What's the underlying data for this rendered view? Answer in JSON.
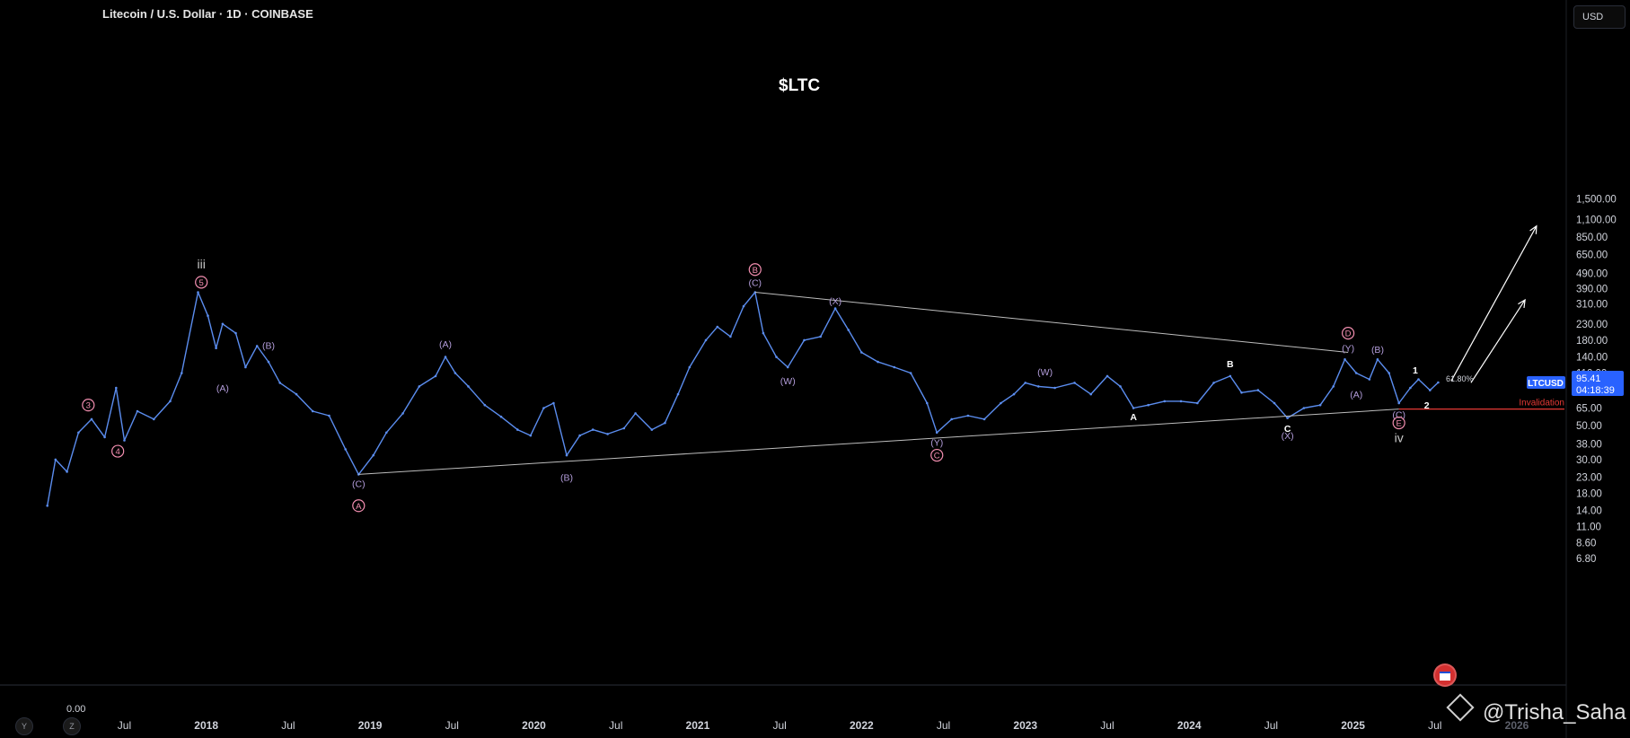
{
  "header": {
    "symbol_title": "Litecoin / U.S. Dollar · 1D · COINBASE",
    "currency_button": "USD"
  },
  "chart_title": "$LTC",
  "watermark": "@Trisha_Saha",
  "left_zero_label": "0.00",
  "bottom_buttons": [
    "Y",
    "Z"
  ],
  "colors": {
    "background": "#000000",
    "price_line": "#5b8def",
    "pink_label": "#f48fb1",
    "purple_label": "#b39ddb",
    "trendline": "#bdbdbd",
    "invalidation": "#e53935",
    "price_badge": "#2962ff"
  },
  "chart_data": {
    "type": "line",
    "title": "$LTC",
    "y_scale": "log",
    "y_ticks": [
      1500,
      1100,
      850,
      650,
      490,
      390,
      310,
      230,
      180,
      140,
      110,
      65,
      50,
      38,
      30,
      23,
      18,
      14,
      11,
      8.6,
      6.8
    ],
    "y_tick_labels": [
      "1,500.00",
      "1,100.00",
      "850.00",
      "650.00",
      "490.00",
      "390.00",
      "310.00",
      "230.00",
      "180.00",
      "140.00",
      "110.00",
      "65.00",
      "50.00",
      "38.00",
      "30.00",
      "23.00",
      "18.00",
      "14.00",
      "11.00",
      "8.60",
      "6.80"
    ],
    "x_ticks": [
      {
        "label": "Jul",
        "t": 2017.5
      },
      {
        "label": "2018",
        "t": 2018.0
      },
      {
        "label": "Jul",
        "t": 2018.5
      },
      {
        "label": "2019",
        "t": 2019.0
      },
      {
        "label": "Jul",
        "t": 2019.5
      },
      {
        "label": "2020",
        "t": 2020.0
      },
      {
        "label": "Jul",
        "t": 2020.5
      },
      {
        "label": "2021",
        "t": 2021.0
      },
      {
        "label": "Jul",
        "t": 2021.5
      },
      {
        "label": "2022",
        "t": 2022.0
      },
      {
        "label": "Jul",
        "t": 2022.5
      },
      {
        "label": "2023",
        "t": 2023.0
      },
      {
        "label": "Jul",
        "t": 2023.5
      },
      {
        "label": "2024",
        "t": 2024.0
      },
      {
        "label": "Jul",
        "t": 2024.5
      },
      {
        "label": "2025",
        "t": 2025.0
      },
      {
        "label": "Jul",
        "t": 2025.5
      },
      {
        "label": "2026",
        "t": 2026.0
      }
    ],
    "x_range": [
      2016.9,
      2026.0
    ],
    "series": [
      {
        "values": [
          {
            "t": 2017.03,
            "p": 15
          },
          {
            "t": 2017.08,
            "p": 30
          },
          {
            "t": 2017.15,
            "p": 25
          },
          {
            "t": 2017.22,
            "p": 45
          },
          {
            "t": 2017.3,
            "p": 55
          },
          {
            "t": 2017.38,
            "p": 42
          },
          {
            "t": 2017.45,
            "p": 88
          },
          {
            "t": 2017.5,
            "p": 40
          },
          {
            "t": 2017.58,
            "p": 62
          },
          {
            "t": 2017.68,
            "p": 55
          },
          {
            "t": 2017.78,
            "p": 72
          },
          {
            "t": 2017.85,
            "p": 110
          },
          {
            "t": 2017.95,
            "p": 370
          },
          {
            "t": 2018.01,
            "p": 260
          },
          {
            "t": 2018.06,
            "p": 160
          },
          {
            "t": 2018.1,
            "p": 230
          },
          {
            "t": 2018.18,
            "p": 200
          },
          {
            "t": 2018.24,
            "p": 120
          },
          {
            "t": 2018.31,
            "p": 165
          },
          {
            "t": 2018.38,
            "p": 130
          },
          {
            "t": 2018.45,
            "p": 95
          },
          {
            "t": 2018.55,
            "p": 80
          },
          {
            "t": 2018.65,
            "p": 62
          },
          {
            "t": 2018.75,
            "p": 58
          },
          {
            "t": 2018.85,
            "p": 35
          },
          {
            "t": 2018.93,
            "p": 24
          },
          {
            "t": 2019.02,
            "p": 32
          },
          {
            "t": 2019.1,
            "p": 45
          },
          {
            "t": 2019.2,
            "p": 60
          },
          {
            "t": 2019.3,
            "p": 90
          },
          {
            "t": 2019.4,
            "p": 105
          },
          {
            "t": 2019.46,
            "p": 140
          },
          {
            "t": 2019.52,
            "p": 110
          },
          {
            "t": 2019.6,
            "p": 90
          },
          {
            "t": 2019.7,
            "p": 68
          },
          {
            "t": 2019.8,
            "p": 57
          },
          {
            "t": 2019.9,
            "p": 47
          },
          {
            "t": 2019.98,
            "p": 43
          },
          {
            "t": 2020.06,
            "p": 65
          },
          {
            "t": 2020.12,
            "p": 70
          },
          {
            "t": 2020.2,
            "p": 32
          },
          {
            "t": 2020.28,
            "p": 43
          },
          {
            "t": 2020.36,
            "p": 47
          },
          {
            "t": 2020.45,
            "p": 44
          },
          {
            "t": 2020.55,
            "p": 48
          },
          {
            "t": 2020.62,
            "p": 60
          },
          {
            "t": 2020.72,
            "p": 47
          },
          {
            "t": 2020.8,
            "p": 52
          },
          {
            "t": 2020.88,
            "p": 80
          },
          {
            "t": 2020.95,
            "p": 120
          },
          {
            "t": 2021.05,
            "p": 180
          },
          {
            "t": 2021.12,
            "p": 220
          },
          {
            "t": 2021.2,
            "p": 190
          },
          {
            "t": 2021.28,
            "p": 300
          },
          {
            "t": 2021.35,
            "p": 370
          },
          {
            "t": 2021.4,
            "p": 200
          },
          {
            "t": 2021.48,
            "p": 140
          },
          {
            "t": 2021.55,
            "p": 120
          },
          {
            "t": 2021.65,
            "p": 180
          },
          {
            "t": 2021.75,
            "p": 190
          },
          {
            "t": 2021.84,
            "p": 290
          },
          {
            "t": 2021.92,
            "p": 210
          },
          {
            "t": 2022.0,
            "p": 150
          },
          {
            "t": 2022.1,
            "p": 130
          },
          {
            "t": 2022.2,
            "p": 120
          },
          {
            "t": 2022.3,
            "p": 110
          },
          {
            "t": 2022.4,
            "p": 70
          },
          {
            "t": 2022.46,
            "p": 45
          },
          {
            "t": 2022.55,
            "p": 55
          },
          {
            "t": 2022.65,
            "p": 58
          },
          {
            "t": 2022.75,
            "p": 55
          },
          {
            "t": 2022.85,
            "p": 70
          },
          {
            "t": 2022.93,
            "p": 80
          },
          {
            "t": 2023.0,
            "p": 95
          },
          {
            "t": 2023.08,
            "p": 90
          },
          {
            "t": 2023.18,
            "p": 88
          },
          {
            "t": 2023.3,
            "p": 95
          },
          {
            "t": 2023.4,
            "p": 80
          },
          {
            "t": 2023.5,
            "p": 105
          },
          {
            "t": 2023.58,
            "p": 90
          },
          {
            "t": 2023.66,
            "p": 65
          },
          {
            "t": 2023.75,
            "p": 68
          },
          {
            "t": 2023.85,
            "p": 72
          },
          {
            "t": 2023.95,
            "p": 72
          },
          {
            "t": 2024.05,
            "p": 70
          },
          {
            "t": 2024.15,
            "p": 95
          },
          {
            "t": 2024.25,
            "p": 105
          },
          {
            "t": 2024.32,
            "p": 82
          },
          {
            "t": 2024.42,
            "p": 85
          },
          {
            "t": 2024.52,
            "p": 70
          },
          {
            "t": 2024.6,
            "p": 56
          },
          {
            "t": 2024.7,
            "p": 65
          },
          {
            "t": 2024.8,
            "p": 68
          },
          {
            "t": 2024.88,
            "p": 90
          },
          {
            "t": 2024.95,
            "p": 135
          },
          {
            "t": 2025.02,
            "p": 110
          },
          {
            "t": 2025.1,
            "p": 100
          },
          {
            "t": 2025.15,
            "p": 135
          },
          {
            "t": 2025.22,
            "p": 110
          },
          {
            "t": 2025.28,
            "p": 70
          },
          {
            "t": 2025.35,
            "p": 88
          },
          {
            "t": 2025.4,
            "p": 100
          },
          {
            "t": 2025.47,
            "p": 85
          },
          {
            "t": 2025.52,
            "p": 95.41
          }
        ]
      }
    ],
    "current_price": {
      "symbol": "LTCUSD",
      "price": "95.41",
      "countdown": "04:18:39"
    },
    "fib_label": "61.80%",
    "invalidation": {
      "label": "Invalidation",
      "price": 64
    },
    "trendlines": [
      {
        "from": {
          "t": 2018.93,
          "p": 24
        },
        "to": {
          "t": 2025.28,
          "p": 64
        }
      },
      {
        "from": {
          "t": 2021.35,
          "p": 370
        },
        "to": {
          "t": 2024.97,
          "p": 150
        }
      }
    ],
    "arrows": [
      {
        "from": {
          "t": 2025.6,
          "p": 98
        },
        "to": {
          "t": 2026.12,
          "p": 1000
        }
      },
      {
        "from": {
          "t": 2025.72,
          "p": 95
        },
        "to": {
          "t": 2026.05,
          "p": 330
        }
      }
    ],
    "annotations": [
      {
        "text": "iii",
        "t": 2017.97,
        "p": 560,
        "kind": "roman"
      },
      {
        "text": "5",
        "t": 2017.97,
        "p": 430,
        "kind": "pink_circle"
      },
      {
        "text": "3",
        "t": 2017.28,
        "p": 68,
        "kind": "pink_circle"
      },
      {
        "text": "4",
        "t": 2017.46,
        "p": 34,
        "kind": "pink_circle"
      },
      {
        "text": "(A)",
        "t": 2018.1,
        "p": 88,
        "kind": "purple"
      },
      {
        "text": "(B)",
        "t": 2018.38,
        "p": 167,
        "kind": "purple"
      },
      {
        "text": "(C)",
        "t": 2018.93,
        "p": 21,
        "kind": "purple"
      },
      {
        "text": "A",
        "t": 2018.93,
        "p": 15,
        "kind": "pink_circle"
      },
      {
        "text": "(A)",
        "t": 2019.46,
        "p": 170,
        "kind": "purple"
      },
      {
        "text": "(B)",
        "t": 2020.2,
        "p": 23,
        "kind": "purple"
      },
      {
        "text": "B",
        "t": 2021.35,
        "p": 520,
        "kind": "pink_circle"
      },
      {
        "text": "(C)",
        "t": 2021.35,
        "p": 430,
        "kind": "purple"
      },
      {
        "text": "(X)",
        "t": 2021.84,
        "p": 325,
        "kind": "purple"
      },
      {
        "text": "(W)",
        "t": 2021.55,
        "p": 98,
        "kind": "purple"
      },
      {
        "text": "(Y)",
        "t": 2022.46,
        "p": 39,
        "kind": "purple"
      },
      {
        "text": "C",
        "t": 2022.46,
        "p": 32,
        "kind": "pink_circle"
      },
      {
        "text": "(W)",
        "t": 2023.12,
        "p": 112,
        "kind": "purple"
      },
      {
        "text": "A",
        "t": 2023.66,
        "p": 57,
        "kind": "white"
      },
      {
        "text": "B",
        "t": 2024.25,
        "p": 127,
        "kind": "white"
      },
      {
        "text": "C",
        "t": 2024.6,
        "p": 48,
        "kind": "white"
      },
      {
        "text": "(X)",
        "t": 2024.6,
        "p": 43,
        "kind": "purple"
      },
      {
        "text": "D",
        "t": 2024.97,
        "p": 200,
        "kind": "pink_circle"
      },
      {
        "text": "(Y)",
        "t": 2024.97,
        "p": 160,
        "kind": "purple"
      },
      {
        "text": "(A)",
        "t": 2025.02,
        "p": 80,
        "kind": "purple"
      },
      {
        "text": "(B)",
        "t": 2025.15,
        "p": 157,
        "kind": "purple"
      },
      {
        "text": "(C)",
        "t": 2025.28,
        "p": 59,
        "kind": "purple"
      },
      {
        "text": "E",
        "t": 2025.28,
        "p": 52,
        "kind": "pink_circle"
      },
      {
        "text": "iv",
        "t": 2025.28,
        "p": 41,
        "kind": "roman"
      },
      {
        "text": "1",
        "t": 2025.38,
        "p": 115,
        "kind": "white"
      },
      {
        "text": "2",
        "t": 2025.45,
        "p": 68,
        "kind": "white"
      }
    ]
  }
}
